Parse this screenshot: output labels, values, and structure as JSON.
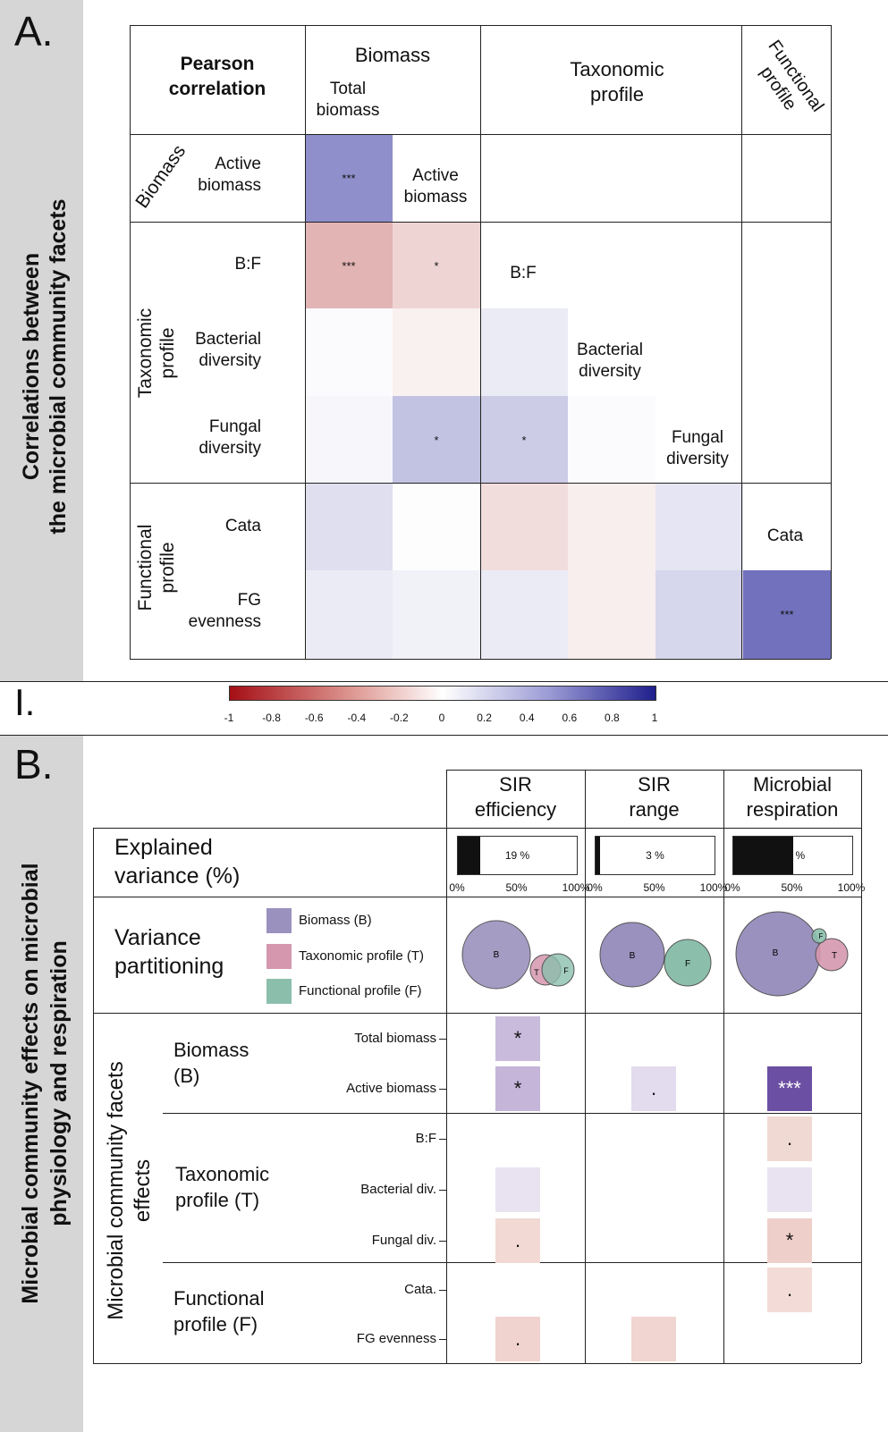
{
  "panelA": {
    "letter": "A.",
    "side_title_line1": "Correlations between",
    "side_title_line2": "the microbial community facets",
    "corner_label": "Pearson correlation",
    "col_groups": {
      "biomass": "Biomass",
      "taxonomic": "Taxonomic profile",
      "functional": "Functional profile"
    },
    "row_groups": {
      "biomass": "Biomass",
      "taxonomic": "Taxonomic profile",
      "functional": "Functional profile"
    },
    "row_labels": [
      "Active biomass",
      "B:F",
      "Bacterial diversity",
      "Fungal diversity",
      "Cata",
      "FG evenness"
    ],
    "diag_labels": [
      "Total biomass",
      "Active biomass",
      "B:F",
      "Bacterial diversity",
      "Fungal diversity",
      "Cata"
    ],
    "matrix": [
      [
        {
          "r": 0.55,
          "sig": "***"
        }
      ],
      [
        {
          "r": -0.35,
          "sig": "***"
        },
        {
          "r": -0.2,
          "sig": "*"
        }
      ],
      [
        {
          "r": 0.02,
          "sig": ""
        },
        {
          "r": -0.07,
          "sig": ""
        },
        {
          "r": 0.1,
          "sig": ""
        }
      ],
      [
        {
          "r": 0.04,
          "sig": ""
        },
        {
          "r": 0.3,
          "sig": "*"
        },
        {
          "r": 0.25,
          "sig": "*"
        },
        {
          "r": 0.02,
          "sig": ""
        }
      ],
      [
        {
          "r": 0.16,
          "sig": ""
        },
        {
          "r": 0.01,
          "sig": ""
        },
        {
          "r": -0.16,
          "sig": ""
        },
        {
          "r": -0.08,
          "sig": ""
        },
        {
          "r": 0.13,
          "sig": ""
        }
      ],
      [
        {
          "r": 0.1,
          "sig": ""
        },
        {
          "r": 0.07,
          "sig": ""
        },
        {
          "r": 0.1,
          "sig": ""
        },
        {
          "r": -0.08,
          "sig": ""
        },
        {
          "r": 0.2,
          "sig": ""
        },
        {
          "r": 0.7,
          "sig": "***"
        }
      ]
    ]
  },
  "colorbar": {
    "ticks": [
      "-1",
      "-0.8",
      "-0.6",
      "-0.4",
      "-0.2",
      "0",
      "0.2",
      "0.4",
      "0.6",
      "0.8",
      "1"
    ],
    "section_mark": "I."
  },
  "panelB": {
    "letter": "B.",
    "side_title_line1": "Microbial community effects on microbial",
    "side_title_line2": "physiology and respiration",
    "columns": [
      {
        "line1": "SIR",
        "line2": "efficiency"
      },
      {
        "line1": "SIR",
        "line2": "range"
      },
      {
        "line1": "Microbial",
        "line2": "respiration"
      }
    ],
    "explained_label_line1": "Explained",
    "explained_label_line2": "variance (%)",
    "explained": [
      {
        "value": 19,
        "text": "19 %"
      },
      {
        "value": 3,
        "text": "3 %"
      },
      {
        "value": 50,
        "text": "50 %"
      }
    ],
    "axis_ticks": [
      "0%",
      "50%",
      "100%"
    ],
    "partition_label_line1": "Variance",
    "partition_label_line2": "partitioning",
    "legend": [
      {
        "label": "Biomass (B)",
        "color": "#9b91be"
      },
      {
        "label": "Taxonomic profile (T)",
        "color": "#d597ae"
      },
      {
        "label": "Functional profile (F)",
        "color": "#8bbfac"
      }
    ],
    "venn_letters": {
      "b": "B",
      "t": "T",
      "f": "F"
    },
    "facets_title_line1": "Microbial community facets",
    "facets_title_line2": "effects",
    "groups": [
      {
        "line1": "Biomass",
        "line2": "(B)"
      },
      {
        "line1": "Taxonomic",
        "line2": "profile (T)"
      },
      {
        "line1": "Functional",
        "line2": "profile (F)"
      }
    ],
    "rows": [
      "Total biomass",
      "Active biomass",
      "B:F",
      "Bacterial div.",
      "Fungal div.",
      "Cata.",
      "FG evenness"
    ],
    "effects": [
      [
        {
          "col": 0,
          "color": "#c9bbdc",
          "sig": "*"
        }
      ],
      [
        {
          "col": 0,
          "color": "#c4b5d9",
          "sig": "*"
        },
        {
          "col": 1,
          "color": "#e3dbee",
          "sig": "."
        },
        {
          "col": 2,
          "color": "#6b4fa3",
          "sig": "***"
        }
      ],
      [
        {
          "col": 2,
          "color": "#f1d9d3",
          "sig": "."
        }
      ],
      [
        {
          "col": 0,
          "color": "#e9e3f1",
          "sig": ""
        },
        {
          "col": 2,
          "color": "#e9e3f1",
          "sig": ""
        }
      ],
      [
        {
          "col": 0,
          "color": "#f2d9d4",
          "sig": "."
        },
        {
          "col": 2,
          "color": "#efcfca",
          "sig": "*"
        }
      ],
      [
        {
          "col": 2,
          "color": "#f3dcd7",
          "sig": "."
        }
      ],
      [
        {
          "col": 0,
          "color": "#f0d3ce",
          "sig": "."
        },
        {
          "col": 1,
          "color": "#f1d5d0",
          "sig": ""
        }
      ]
    ]
  }
}
